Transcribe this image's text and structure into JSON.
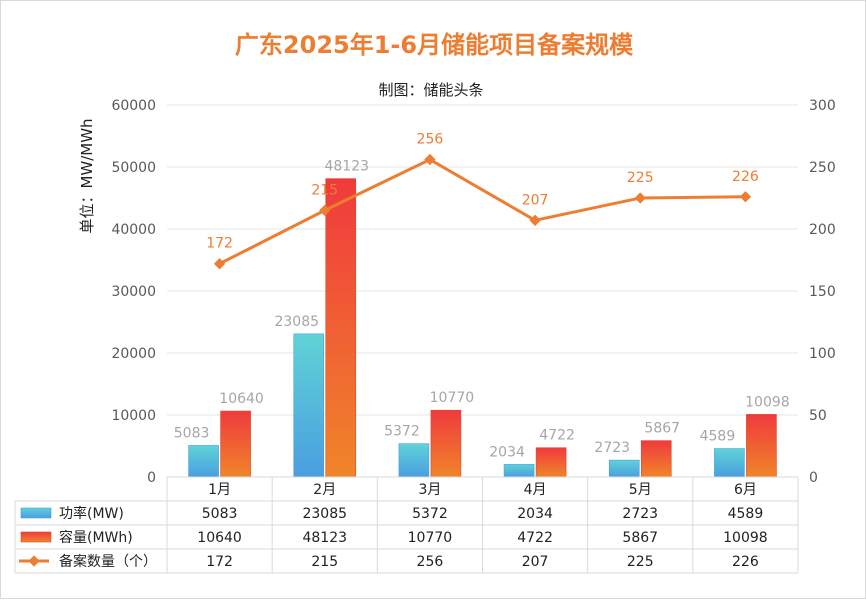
{
  "chart_data": {
    "type": "bar",
    "title": "广东2025年1-6月储能项目备案规模",
    "subtitle": "制图：储能头条",
    "ylabel": "单位：MW/MWh",
    "categories": [
      "1月",
      "2月",
      "3月",
      "4月",
      "5月",
      "6月"
    ],
    "ylim": [
      0,
      60000
    ],
    "y2lim": [
      0,
      300
    ],
    "yticks": [
      "0",
      "10000",
      "20000",
      "30000",
      "40000",
      "50000",
      "60000"
    ],
    "y2ticks": [
      "0",
      "50",
      "100",
      "150",
      "200",
      "250",
      "300"
    ],
    "grid": true,
    "series": [
      {
        "name": "功率(MW)",
        "kind": "bar",
        "axis": "left",
        "values": [
          5083,
          23085,
          5372,
          2034,
          2723,
          4589
        ],
        "colors": [
          "#5fd3d6",
          "#4a9ee0"
        ]
      },
      {
        "name": "容量(MWh)",
        "kind": "bar",
        "axis": "left",
        "values": [
          10640,
          48123,
          10770,
          4722,
          5867,
          10098
        ],
        "colors": [
          "#f03a3d",
          "#f0852a"
        ]
      },
      {
        "name": "备案数量（个）",
        "kind": "line",
        "axis": "right",
        "values": [
          172,
          215,
          256,
          207,
          225,
          226
        ],
        "colors": [
          "#ed7d31"
        ]
      }
    ]
  }
}
